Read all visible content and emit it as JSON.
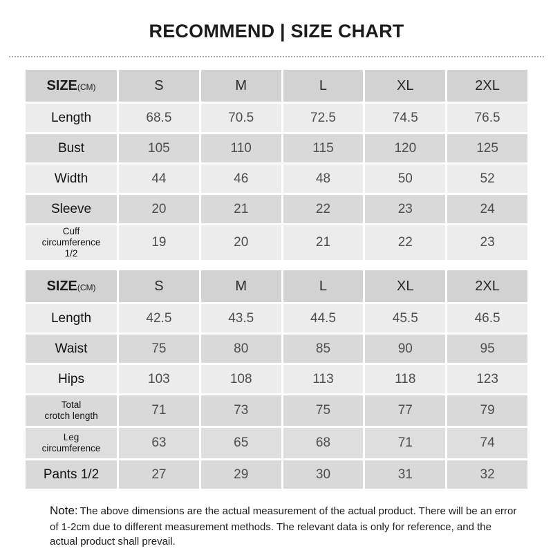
{
  "title": "RECOMMEND | SIZE CHART",
  "note": {
    "label": "Note:",
    "text": "The above dimensions are the actual measurement of the actual product. There will be an error of 1-2cm due to different measurement methods. The relevant data is only for reference, and the actual product shall prevail."
  },
  "colors": {
    "header_bg": "#d2d2d2",
    "row_light_bg": "#ececec",
    "row_dark_bg": "#d9d9d9",
    "label_text": "#121212",
    "value_text": "#4d4d4d",
    "title_text": "#1b1b1b"
  },
  "chart_data": [
    {
      "type": "table",
      "size_label": "SIZE",
      "size_unit": "(CM)",
      "sizes": [
        "S",
        "M",
        "L",
        "XL",
        "2XL"
      ],
      "rows": [
        {
          "label": "Length",
          "values": [
            "68.5",
            "70.5",
            "72.5",
            "74.5",
            "76.5"
          ]
        },
        {
          "label": "Bust",
          "values": [
            "105",
            "110",
            "115",
            "120",
            "125"
          ]
        },
        {
          "label": "Width",
          "values": [
            "44",
            "46",
            "48",
            "50",
            "52"
          ]
        },
        {
          "label": "Sleeve",
          "values": [
            "20",
            "21",
            "22",
            "23",
            "24"
          ]
        },
        {
          "label": "Cuff\ncircumference\n1/2",
          "values": [
            "19",
            "20",
            "21",
            "22",
            "23"
          ]
        }
      ]
    },
    {
      "type": "table",
      "size_label": "SIZE",
      "size_unit": "(CM)",
      "sizes": [
        "S",
        "M",
        "L",
        "XL",
        "2XL"
      ],
      "rows": [
        {
          "label": "Length",
          "values": [
            "42.5",
            "43.5",
            "44.5",
            "45.5",
            "46.5"
          ]
        },
        {
          "label": "Waist",
          "values": [
            "75",
            "80",
            "85",
            "90",
            "95"
          ]
        },
        {
          "label": "Hips",
          "values": [
            "103",
            "108",
            "113",
            "118",
            "123"
          ]
        },
        {
          "label": "Total\ncrotch length",
          "values": [
            "71",
            "73",
            "75",
            "77",
            "79"
          ]
        },
        {
          "label": "Leg\ncircumference",
          "values": [
            "63",
            "65",
            "68",
            "71",
            "74"
          ]
        },
        {
          "label": "Pants 1/2",
          "values": [
            "27",
            "29",
            "30",
            "31",
            "32"
          ]
        }
      ]
    }
  ]
}
